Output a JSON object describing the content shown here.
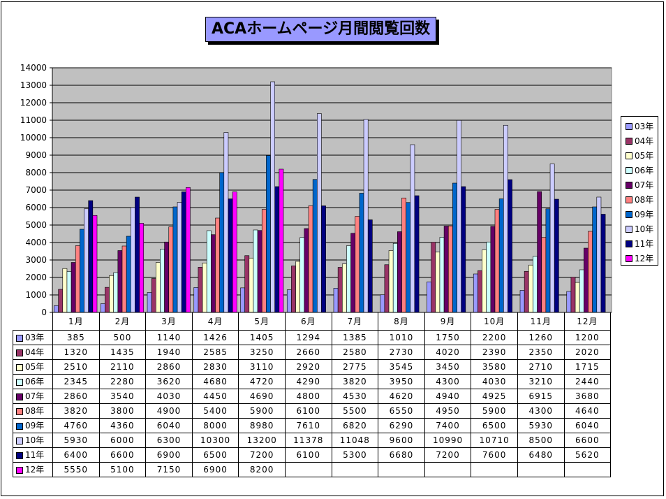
{
  "title": "ACAホームページ月間閲覧回数",
  "colors": {
    "plot_bg": "#c0c0c0",
    "title_bg": "#9999ff",
    "series": [
      "#9999ff",
      "#993366",
      "#ffffcc",
      "#ccffff",
      "#660066",
      "#ff8080",
      "#0066cc",
      "#ccccff",
      "#000080",
      "#ff00ff"
    ]
  },
  "chart_data": {
    "type": "bar",
    "title": "ACAホームページ月間閲覧回数",
    "categories": [
      "1月",
      "2月",
      "3月",
      "4月",
      "5月",
      "6月",
      "7月",
      "8月",
      "9月",
      "10月",
      "11月",
      "12月"
    ],
    "ylim": [
      0,
      14000
    ],
    "yticks": [
      0,
      1000,
      2000,
      3000,
      4000,
      5000,
      6000,
      7000,
      8000,
      9000,
      10000,
      11000,
      12000,
      13000,
      14000
    ],
    "grid": true,
    "legend_position": "right",
    "series": [
      {
        "name": "03年",
        "values": [
          385,
          500,
          1140,
          1426,
          1405,
          1294,
          1385,
          1010,
          1750,
          2200,
          1260,
          1200
        ]
      },
      {
        "name": "04年",
        "values": [
          1320,
          1435,
          1940,
          2585,
          3250,
          2660,
          2580,
          2730,
          4020,
          2390,
          2350,
          2020
        ]
      },
      {
        "name": "05年",
        "values": [
          2510,
          2110,
          2860,
          2830,
          3110,
          2920,
          2775,
          3545,
          3450,
          3580,
          2710,
          1715
        ]
      },
      {
        "name": "06年",
        "values": [
          2345,
          2280,
          3620,
          4680,
          4720,
          4290,
          3820,
          3950,
          4300,
          4030,
          3210,
          2440
        ]
      },
      {
        "name": "07年",
        "values": [
          2860,
          3540,
          4030,
          4450,
          4690,
          4800,
          4530,
          4620,
          4940,
          4925,
          6915,
          3680
        ]
      },
      {
        "name": "08年",
        "values": [
          3820,
          3800,
          4900,
          5400,
          5900,
          6100,
          5500,
          6550,
          4950,
          5900,
          4300,
          4640
        ]
      },
      {
        "name": "09年",
        "values": [
          4760,
          4360,
          6040,
          8000,
          8980,
          7610,
          6820,
          6290,
          7400,
          6500,
          5930,
          6040
        ]
      },
      {
        "name": "10年",
        "values": [
          5930,
          6000,
          6300,
          10300,
          13200,
          11378,
          11048,
          9600,
          10990,
          10710,
          8500,
          6600
        ]
      },
      {
        "name": "11年",
        "values": [
          6400,
          6600,
          6900,
          6500,
          7200,
          6100,
          5300,
          6680,
          7200,
          7600,
          6480,
          5620
        ]
      },
      {
        "name": "12年",
        "values": [
          5550,
          5100,
          7150,
          6900,
          8200,
          null,
          null,
          null,
          null,
          null,
          null,
          null
        ]
      }
    ]
  }
}
